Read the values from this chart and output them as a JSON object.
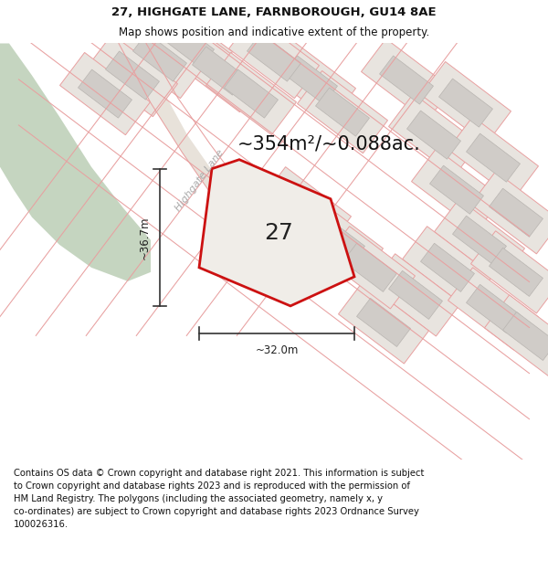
{
  "title_line1": "27, HIGHGATE LANE, FARNBOROUGH, GU14 8AE",
  "title_line2": "Map shows position and indicative extent of the property.",
  "area_text": "~354m²/~0.088ac.",
  "label_27": "27",
  "dim_height": "~36.7m",
  "dim_width": "~32.0m",
  "street_label": "Highgate Lane",
  "footer_text": "Contains OS data © Crown copyright and database right 2021. This information is subject\nto Crown copyright and database rights 2023 and is reproduced with the permission of\nHM Land Registry. The polygons (including the associated geometry, namely x, y\nco-ordinates) are subject to Crown copyright and database rights 2023 Ordnance Survey\n100026316.",
  "map_bg": "#f0ede8",
  "green_color": "#c5d5c0",
  "road_line_color": "#e8a0a0",
  "plot_bg_color": "#e8e4df",
  "building_color": "#d0ccc8",
  "plot_outline_color": "#cc1111",
  "dim_line_color": "#333333",
  "title_fontsize": 9.5,
  "subtitle_fontsize": 8.5,
  "area_fontsize": 15,
  "label_fontsize": 18,
  "footer_fontsize": 7.2,
  "street_fontsize": 8
}
